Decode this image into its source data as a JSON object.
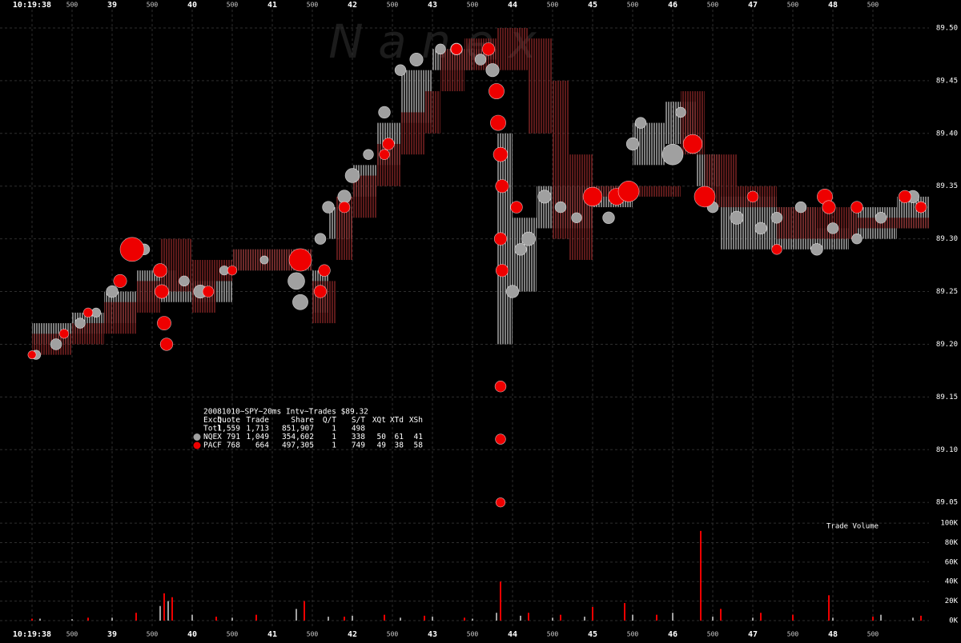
{
  "watermark": "N a n e x",
  "chart_data": [
    {
      "type": "scatter",
      "xlim": [
        37.6,
        49.2
      ],
      "xticks": [
        {
          "value": 38,
          "label": "10:19:38"
        },
        {
          "value": 38.5,
          "label": "500"
        },
        {
          "value": 39,
          "label": "39"
        },
        {
          "value": 39.5,
          "label": "500"
        },
        {
          "value": 40,
          "label": "40"
        },
        {
          "value": 40.5,
          "label": "500"
        },
        {
          "value": 41,
          "label": "41"
        },
        {
          "value": 41.5,
          "label": "500"
        },
        {
          "value": 42,
          "label": "42"
        },
        {
          "value": 42.5,
          "label": "500"
        },
        {
          "value": 43,
          "label": "43"
        },
        {
          "value": 43.5,
          "label": "500"
        },
        {
          "value": 44,
          "label": "44"
        },
        {
          "value": 44.5,
          "label": "500"
        },
        {
          "value": 45,
          "label": "45"
        },
        {
          "value": 45.5,
          "label": "500"
        },
        {
          "value": 46,
          "label": "46"
        },
        {
          "value": 46.5,
          "label": "500"
        },
        {
          "value": 47,
          "label": "47"
        },
        {
          "value": 47.5,
          "label": "500"
        },
        {
          "value": 48,
          "label": "48"
        },
        {
          "value": 48.5,
          "label": "500"
        }
      ],
      "ylim": [
        89.035,
        89.525
      ],
      "yticks": [
        {
          "value": 89.05,
          "label": "89.05"
        },
        {
          "value": 89.1,
          "label": "89.10"
        },
        {
          "value": 89.15,
          "label": "89.15"
        },
        {
          "value": 89.2,
          "label": "89.20"
        },
        {
          "value": 89.25,
          "label": "89.25"
        },
        {
          "value": 89.3,
          "label": "89.30"
        },
        {
          "value": 89.35,
          "label": "89.35"
        },
        {
          "value": 89.4,
          "label": "89.40"
        },
        {
          "value": 89.45,
          "label": "89.45"
        },
        {
          "value": 89.5,
          "label": "89.50"
        }
      ],
      "grid": true,
      "stats": {
        "title": "20081010~SPY~20ms Intv~Trades $89.32",
        "columns": [
          "Exch",
          "Quote",
          "Trade",
          "Share",
          "Q/T",
          "S/T",
          "XQt",
          "XTd",
          "XSh"
        ],
        "rows": [
          [
            "Totl",
            "1,559",
            "1,713",
            "851,907",
            "1",
            "498"
          ],
          [
            "NQEX",
            "791",
            "1,049",
            "354,602",
            "1",
            "338",
            "50",
            "61",
            "41"
          ],
          [
            "PACF",
            "768",
            "664",
            "497,305",
            "1",
            "749",
            "49",
            "38",
            "58"
          ]
        ]
      },
      "quotes": [
        {
          "color": "#cfcfcf",
          "x": [
            38.0,
            38.5,
            38.9,
            39.3,
            39.8,
            40.5,
            41.5,
            41.7,
            42.0,
            42.3,
            42.6,
            43.0,
            43.5,
            43.8,
            44.0,
            44.3,
            45.0,
            45.5,
            45.9,
            46.3,
            46.6,
            47.3,
            47.8,
            48.2,
            48.8
          ],
          "low": [
            89.2,
            89.21,
            89.22,
            89.24,
            89.24,
            89.27,
            89.23,
            89.3,
            89.34,
            89.37,
            89.41,
            89.46,
            89.47,
            89.2,
            89.25,
            89.31,
            89.33,
            89.37,
            89.39,
            89.35,
            89.29,
            89.29,
            89.29,
            89.3,
            89.31
          ],
          "high": [
            89.22,
            89.23,
            89.25,
            89.27,
            89.26,
            89.29,
            89.27,
            89.33,
            89.37,
            89.41,
            89.46,
            89.48,
            89.48,
            89.4,
            89.32,
            89.35,
            89.35,
            89.41,
            89.43,
            89.38,
            89.34,
            89.33,
            89.31,
            89.33,
            89.34
          ]
        },
        {
          "color": "#9a2a2a",
          "x": [
            38.0,
            38.5,
            38.9,
            39.3,
            39.6,
            40.0,
            40.3,
            40.5,
            41.0,
            41.5,
            41.8,
            42.0,
            42.3,
            42.6,
            42.9,
            43.1,
            43.4,
            43.8,
            44.2,
            44.5,
            44.7,
            45.0,
            46.0,
            46.1,
            46.4,
            46.8,
            47.3,
            47.9,
            48.3
          ],
          "low": [
            89.19,
            89.2,
            89.21,
            89.23,
            89.25,
            89.23,
            89.26,
            89.27,
            89.27,
            89.22,
            89.28,
            89.32,
            89.35,
            89.38,
            89.4,
            89.44,
            89.46,
            89.46,
            89.4,
            89.3,
            89.28,
            89.34,
            89.34,
            89.38,
            89.33,
            89.33,
            89.3,
            89.3,
            89.31
          ],
          "high": [
            89.21,
            89.22,
            89.24,
            89.26,
            89.3,
            89.28,
            89.28,
            89.29,
            89.29,
            89.26,
            89.34,
            89.36,
            89.39,
            89.42,
            89.44,
            89.48,
            89.49,
            89.5,
            89.49,
            89.45,
            89.38,
            89.35,
            89.35,
            89.44,
            89.38,
            89.35,
            89.33,
            89.33,
            89.32
          ]
        }
      ],
      "series": [
        {
          "color": "#a0a0a0",
          "x": [
            38.05,
            38.3,
            38.6,
            38.8,
            39.0,
            39.4,
            39.9,
            40.1,
            40.4,
            40.9,
            41.3,
            41.35,
            41.6,
            41.7,
            41.9,
            42.0,
            42.2,
            42.4,
            42.6,
            42.8,
            43.1,
            43.3,
            43.6,
            43.75,
            44.0,
            44.1,
            44.2,
            44.4,
            44.6,
            44.8,
            45.2,
            45.5,
            45.6,
            46.0,
            46.1,
            46.5,
            46.8,
            47.1,
            47.3,
            47.6,
            47.8,
            48.0,
            48.3,
            48.6,
            49.0,
            49.1
          ],
          "y": [
            89.19,
            89.2,
            89.22,
            89.23,
            89.25,
            89.29,
            89.26,
            89.25,
            89.27,
            89.28,
            89.26,
            89.24,
            89.3,
            89.33,
            89.34,
            89.36,
            89.38,
            89.42,
            89.46,
            89.47,
            89.48,
            89.48,
            89.47,
            89.46,
            89.25,
            89.29,
            89.3,
            89.34,
            89.33,
            89.32,
            89.32,
            89.39,
            89.41,
            89.38,
            89.42,
            89.33,
            89.32,
            89.31,
            89.32,
            89.33,
            89.29,
            89.31,
            89.3,
            89.32,
            89.34,
            89.33
          ],
          "size": [
            300,
            500,
            400,
            300,
            600,
            500,
            400,
            800,
            300,
            200,
            1500,
            1200,
            500,
            600,
            800,
            1000,
            400,
            600,
            500,
            800,
            400,
            600,
            500,
            800,
            700,
            600,
            900,
            800,
            500,
            400,
            600,
            700,
            500,
            2500,
            400,
            500,
            800,
            600,
            500,
            500,
            600,
            500,
            400,
            500,
            700,
            500
          ]
        },
        {
          "color": "#ee0000",
          "x": [
            38.0,
            38.4,
            38.7,
            39.1,
            39.25,
            39.6,
            39.62,
            39.65,
            39.68,
            40.2,
            40.5,
            41.35,
            41.6,
            41.65,
            41.9,
            42.4,
            42.45,
            43.3,
            43.7,
            43.8,
            43.82,
            43.85,
            43.87,
            43.85,
            43.87,
            43.85,
            43.85,
            43.85,
            44.05,
            45.0,
            45.3,
            45.45,
            46.25,
            46.4,
            47.0,
            47.3,
            47.9,
            47.95,
            48.3,
            48.9,
            49.1
          ],
          "y": [
            89.19,
            89.21,
            89.23,
            89.26,
            89.29,
            89.27,
            89.25,
            89.22,
            89.2,
            89.25,
            89.27,
            89.28,
            89.25,
            89.27,
            89.33,
            89.38,
            89.39,
            89.48,
            89.48,
            89.44,
            89.41,
            89.38,
            89.35,
            89.3,
            89.27,
            89.16,
            89.11,
            89.05,
            89.33,
            89.34,
            89.34,
            89.345,
            89.39,
            89.34,
            89.34,
            89.29,
            89.34,
            89.33,
            89.33,
            89.34,
            89.33
          ],
          "size": [
            200,
            300,
            300,
            800,
            3500,
            900,
            900,
            900,
            700,
            500,
            300,
            3000,
            700,
            600,
            500,
            400,
            600,
            500,
            700,
            1200,
            1200,
            1000,
            800,
            700,
            700,
            500,
            400,
            300,
            600,
            2000,
            1500,
            2500,
            2000,
            2500,
            500,
            400,
            1200,
            800,
            600,
            700,
            500
          ]
        }
      ]
    },
    {
      "type": "bar",
      "title": "Trade Volume",
      "xlim": [
        37.6,
        49.2
      ],
      "ylim": [
        0,
        105000
      ],
      "yticks": [
        {
          "value": 0,
          "label": "0K"
        },
        {
          "value": 20000,
          "label": "20K"
        },
        {
          "value": 40000,
          "label": "40K"
        },
        {
          "value": 60000,
          "label": "60K"
        },
        {
          "value": 80000,
          "label": "80K"
        },
        {
          "value": 100000,
          "label": "100K"
        }
      ],
      "series": [
        {
          "color": "#a0a0a0",
          "x": [
            38.1,
            38.5,
            39.0,
            39.6,
            39.7,
            40.0,
            40.5,
            41.3,
            41.7,
            42.0,
            42.6,
            43.0,
            43.5,
            43.8,
            44.1,
            44.5,
            44.9,
            45.5,
            46.0,
            46.5,
            47.0,
            47.5,
            48.0,
            48.6,
            49.0
          ],
          "values": [
            2000,
            1500,
            3000,
            15000,
            20000,
            6000,
            3000,
            12000,
            4000,
            5000,
            3000,
            4000,
            2000,
            8000,
            5000,
            3000,
            4000,
            6000,
            8000,
            4000,
            3000,
            4000,
            3000,
            6000,
            3000
          ]
        },
        {
          "color": "#ee0000",
          "x": [
            38.0,
            38.7,
            39.3,
            39.65,
            39.75,
            40.3,
            40.8,
            41.4,
            41.9,
            42.4,
            42.9,
            43.4,
            43.85,
            44.2,
            44.6,
            45.0,
            45.4,
            45.8,
            46.35,
            46.6,
            47.1,
            47.5,
            47.95,
            48.5,
            49.1
          ],
          "values": [
            2000,
            3000,
            8000,
            28000,
            24000,
            4000,
            6000,
            20000,
            4000,
            6000,
            5000,
            3000,
            40000,
            8000,
            6000,
            14000,
            18000,
            6000,
            92000,
            12000,
            8000,
            6000,
            26000,
            4000,
            5000
          ]
        }
      ]
    }
  ]
}
